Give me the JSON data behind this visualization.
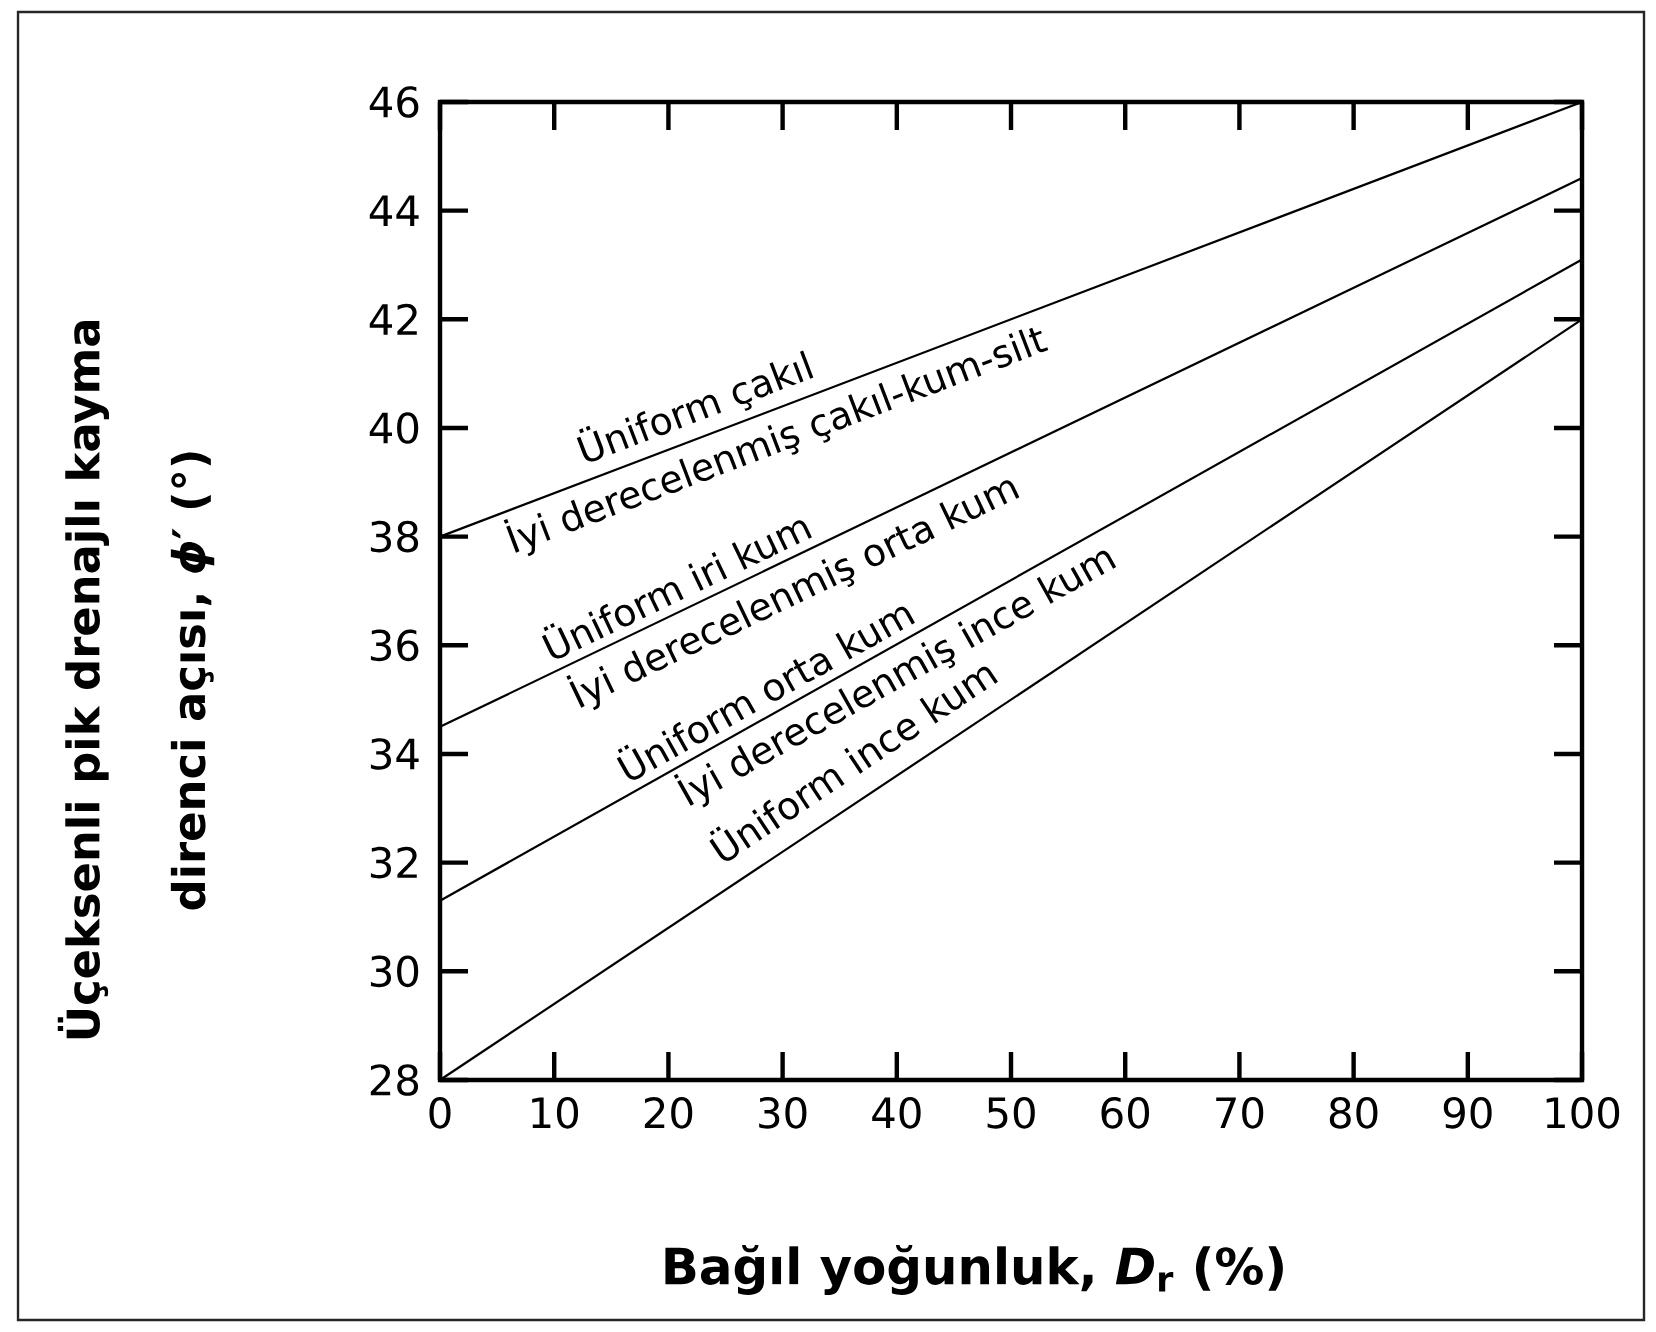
{
  "chart_data": {
    "type": "line",
    "xlabel": "Bağıl yoğunluk, *D*$_{r}$ (%)",
    "ylabel": "Üçeksenli pik drenajlı kayma direnci açısı, *ϕ*′ (°)",
    "x": [
      0,
      100
    ],
    "series": [
      {
        "color": "#000000",
        "values": [
          38,
          46
        ]
      },
      {
        "color": "#000000",
        "values": [
          34.5,
          44.6
        ]
      },
      {
        "color": "#000000",
        "values": [
          31.3,
          43.1
        ]
      },
      {
        "color": "#000000",
        "values": [
          28,
          42
        ]
      }
    ],
    "xlim": [
      0,
      100
    ],
    "ylim": [
      28,
      46
    ],
    "xticks": [
      0,
      10,
      20,
      30,
      40,
      50,
      60,
      70,
      80,
      90,
      100
    ],
    "yticks": [
      28,
      30,
      32,
      34,
      36,
      38,
      40,
      42,
      44,
      46
    ],
    "annotations": [
      {
        "text": "Üniform çakıl",
        "x": 23.2,
        "y": 39.9
      },
      {
        "text": "İyi derecelenmiş çakıl-kum-silt",
        "x": 28.5,
        "y": 40.3
      },
      {
        "text": "Üniform iri kum",
        "x": 21.6,
        "y": 36.7
      },
      {
        "text": "İyi derecelenmiş orta kum",
        "x": 29.9,
        "y": 37.5
      },
      {
        "text": "Üniform orta kum",
        "x": 29.5,
        "y": 34.8
      },
      {
        "text": "İyi derecelenmiş ince kum",
        "x": 38.8,
        "y": 35.9
      },
      {
        "text": "Üniform ince kum",
        "x": 38,
        "y": 33.3
      }
    ]
  }
}
